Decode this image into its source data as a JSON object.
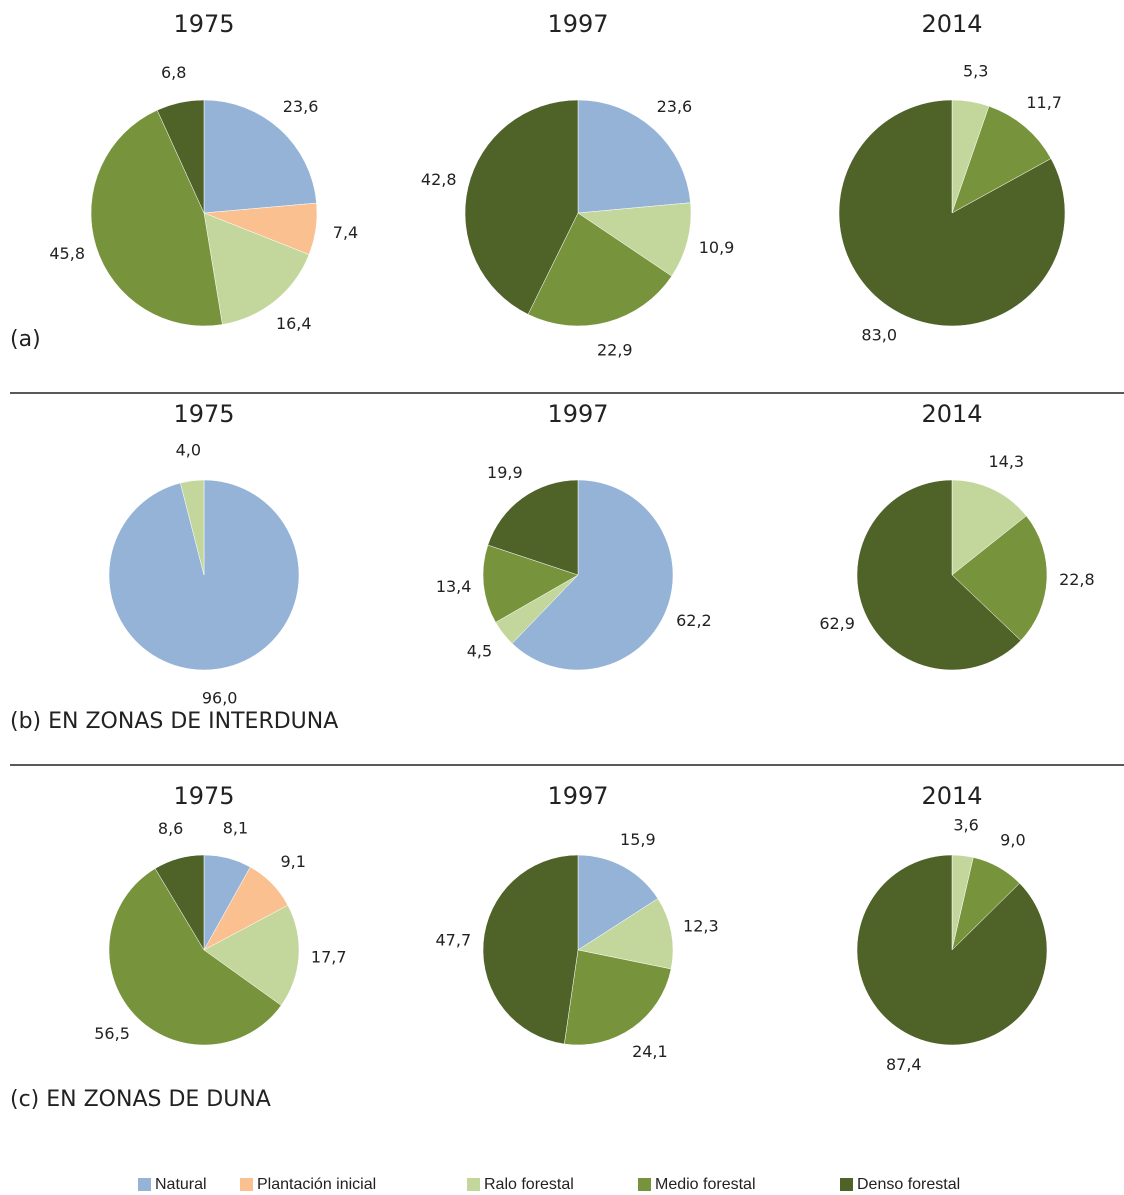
{
  "chart_data": [
    {
      "type": "pie",
      "title": "1975",
      "values": [
        23.6,
        7.4,
        16.4,
        45.8,
        6.8
      ],
      "value_labels": [
        "23,6",
        "7,4",
        "16,4",
        "45,8",
        "6,8"
      ],
      "colors": [
        "#95b3d7",
        "#fac090",
        "#c3d69b",
        "#77933c",
        "#4f6228"
      ]
    },
    {
      "type": "pie",
      "title": "1997",
      "values": [
        23.6,
        10.9,
        22.9,
        42.8
      ],
      "value_labels": [
        "23,6",
        "10,9",
        "22,9",
        "42,8"
      ],
      "colors": [
        "#95b3d7",
        "#c3d69b",
        "#77933c",
        "#4f6228"
      ]
    },
    {
      "type": "pie",
      "title": "2014",
      "values": [
        5.3,
        11.7,
        83.0
      ],
      "value_labels": [
        "5,3",
        "11,7",
        "83,0"
      ],
      "colors": [
        "#c3d69b",
        "#77933c",
        "#4f6228"
      ]
    },
    {
      "type": "pie",
      "title": "1975",
      "values": [
        96.0,
        4.0
      ],
      "value_labels": [
        "96,0",
        "4,0"
      ],
      "colors": [
        "#95b3d7",
        "#c3d69b"
      ]
    },
    {
      "type": "pie",
      "title": "1997",
      "values": [
        62.2,
        4.5,
        13.4,
        19.9
      ],
      "value_labels": [
        "62,2",
        "4,5",
        "13,4",
        "19,9"
      ],
      "colors": [
        "#95b3d7",
        "#c3d69b",
        "#77933c",
        "#4f6228"
      ]
    },
    {
      "type": "pie",
      "title": "2014",
      "values": [
        14.3,
        22.8,
        62.9
      ],
      "value_labels": [
        "14,3",
        "22,8",
        "62,9"
      ],
      "colors": [
        "#c3d69b",
        "#77933c",
        "#4f6228"
      ]
    },
    {
      "type": "pie",
      "title": "1975",
      "values": [
        8.1,
        9.1,
        17.7,
        56.5,
        8.6
      ],
      "value_labels": [
        "8,1",
        "9,1",
        "17,7",
        "56,5",
        "8,6"
      ],
      "colors": [
        "#95b3d7",
        "#fac090",
        "#c3d69b",
        "#77933c",
        "#4f6228"
      ]
    },
    {
      "type": "pie",
      "title": "1997",
      "values": [
        15.9,
        12.3,
        24.1,
        47.7
      ],
      "value_labels": [
        "15,9",
        "12,3",
        "24,1",
        "47,7"
      ],
      "colors": [
        "#95b3d7",
        "#c3d69b",
        "#77933c",
        "#4f6228"
      ]
    },
    {
      "type": "pie",
      "title": "2014",
      "values": [
        3.6,
        9.0,
        87.4
      ],
      "value_labels": [
        "3,6",
        "9,0",
        "87,4"
      ],
      "colors": [
        "#c3d69b",
        "#77933c",
        "#4f6228"
      ]
    }
  ],
  "panel_labels": [
    "(a)",
    "(b) EN ZONAS DE INTERDUNA",
    "(c) EN ZONAS DE DUNA"
  ],
  "legend": {
    "labels": [
      "Natural",
      "Plantación inicial",
      "Ralo forestal",
      "Medio forestal",
      "Denso forestal"
    ],
    "colors": [
      "#95b3d7",
      "#fac090",
      "#c3d69b",
      "#77933c",
      "#4f6228"
    ]
  }
}
